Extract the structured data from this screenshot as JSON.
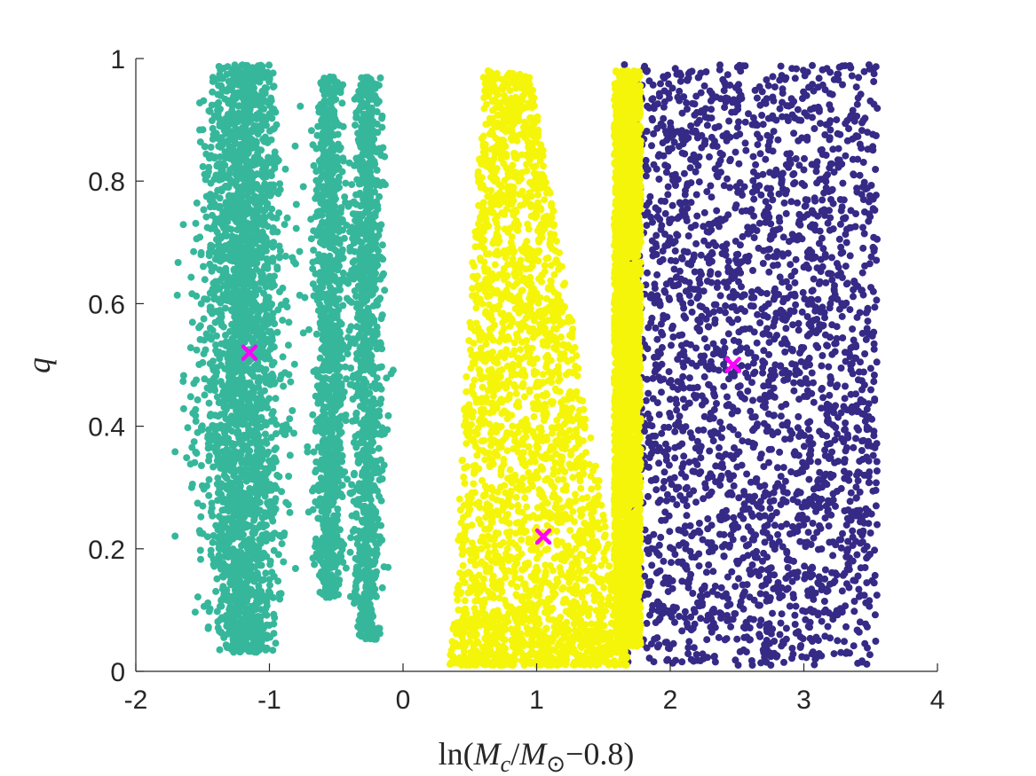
{
  "chart_data": {
    "type": "scatter",
    "title": "",
    "xlabel": "ln(Mc/M⊙−0.8)",
    "ylabel": "q",
    "xlim": [
      -2,
      4
    ],
    "ylim": [
      0,
      1
    ],
    "x_ticks": [
      -2,
      -1,
      0,
      1,
      2,
      3,
      4
    ],
    "x_tick_labels": [
      "-2",
      "-1",
      "0",
      "1",
      "2",
      "3",
      "4"
    ],
    "y_ticks": [
      0,
      0.2,
      0.4,
      0.6,
      0.8,
      1
    ],
    "y_tick_labels": [
      "0",
      "0.2",
      "0.4",
      "0.6",
      "0.8",
      "1"
    ],
    "grid": false,
    "legend": "none",
    "clusters": [
      {
        "color": "#36b79b",
        "regions": [
          {
            "x_center": -1.2,
            "x_sd": 0.16,
            "y_range": [
              0.03,
              0.99
            ],
            "density": "dense"
          },
          {
            "x_center": -0.55,
            "x_sd": 0.06,
            "y_range": [
              0.12,
              0.97
            ],
            "density": "medium"
          },
          {
            "x_center": -0.27,
            "x_sd": 0.06,
            "y_range": [
              0.05,
              0.97
            ],
            "density": "medium"
          }
        ],
        "centroid": {
          "x": -1.15,
          "y": 0.52
        }
      },
      {
        "color": "#f5f50a",
        "regions": [
          {
            "x_range": [
              0.35,
              1.7
            ],
            "y_range": [
              0.01,
              0.98
            ],
            "shape": "tapered",
            "density": "dense"
          },
          {
            "x_range": [
              1.58,
              1.78
            ],
            "y_range": [
              0.04,
              0.98
            ],
            "density": "dense"
          }
        ],
        "centroid": {
          "x": 1.05,
          "y": 0.22
        }
      },
      {
        "color": "#352a86",
        "regions": [
          {
            "x_range": [
              1.65,
              3.55
            ],
            "y_range": [
              0.01,
              0.99
            ],
            "density": "dense"
          }
        ],
        "centroid": {
          "x": 2.47,
          "y": 0.5
        }
      }
    ],
    "centroid_marker": {
      "shape": "x",
      "color": "#ff00ff"
    }
  }
}
